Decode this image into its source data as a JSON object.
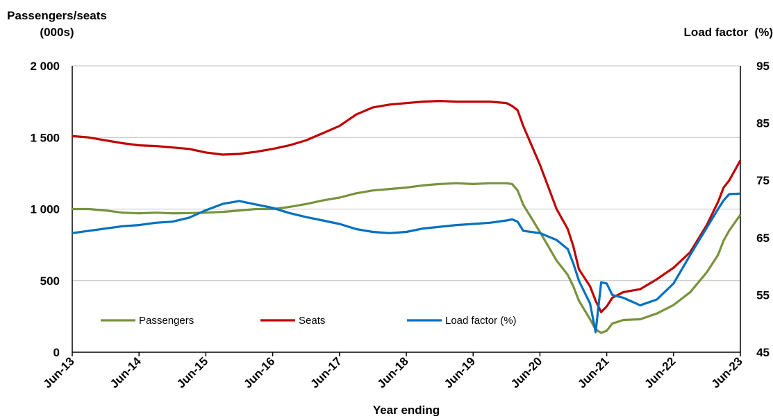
{
  "chart_data": {
    "type": "line",
    "left_axis_title_line1": "Passengers/seats",
    "left_axis_title_line2": "(000s)",
    "right_axis_title": "Load factor  (%)",
    "xlabel": "Year ending",
    "x_ticks": [
      "Jun-13",
      "Jun-14",
      "Jun-15",
      "Jun-16",
      "Jun-17",
      "Jun-18",
      "Jun-19",
      "Jun-20",
      "Jun-21",
      "Jun-22",
      "Jun-23"
    ],
    "y_left": {
      "ticks": [
        "0",
        "500",
        "1 000",
        "1 500",
        "2 000"
      ],
      "tick_values": [
        0,
        500,
        1000,
        1500,
        2000
      ],
      "range": [
        0,
        2000
      ]
    },
    "y_right": {
      "ticks": [
        "45",
        "55",
        "65",
        "75",
        "85",
        "95"
      ],
      "tick_values": [
        45,
        55,
        65,
        75,
        85,
        95
      ],
      "range": [
        45,
        95
      ]
    },
    "grid": "horizontal",
    "legend_position": "bottom-left",
    "series": [
      {
        "name": "Passengers",
        "axis": "left",
        "color": "#77933c",
        "points": [
          [
            "Jun-13",
            1000
          ],
          [
            "Sep-13",
            1000
          ],
          [
            "Dec-13",
            990
          ],
          [
            "Mar-14",
            975
          ],
          [
            "Jun-14",
            970
          ],
          [
            "Sep-14",
            975
          ],
          [
            "Dec-14",
            970
          ],
          [
            "Mar-15",
            972
          ],
          [
            "Jun-15",
            975
          ],
          [
            "Sep-15",
            980
          ],
          [
            "Dec-15",
            990
          ],
          [
            "Mar-16",
            1000
          ],
          [
            "Jun-16",
            1000
          ],
          [
            "Sep-16",
            1015
          ],
          [
            "Dec-16",
            1035
          ],
          [
            "Mar-17",
            1060
          ],
          [
            "Jun-17",
            1080
          ],
          [
            "Sep-17",
            1110
          ],
          [
            "Dec-17",
            1130
          ],
          [
            "Mar-18",
            1140
          ],
          [
            "Jun-18",
            1150
          ],
          [
            "Sep-18",
            1165
          ],
          [
            "Dec-18",
            1175
          ],
          [
            "Mar-19",
            1180
          ],
          [
            "Jun-19",
            1175
          ],
          [
            "Sep-19",
            1180
          ],
          [
            "Dec-19",
            1180
          ],
          [
            "Jan-20",
            1175
          ],
          [
            "Feb-20",
            1130
          ],
          [
            "Mar-20",
            1030
          ],
          [
            "Jun-20",
            840
          ],
          [
            "Sep-20",
            640
          ],
          [
            "Nov-20",
            540
          ],
          [
            "Dec-20",
            460
          ],
          [
            "Jan-21",
            360
          ],
          [
            "Mar-21",
            230
          ],
          [
            "Apr-21",
            160
          ],
          [
            "May-21",
            135
          ],
          [
            "Jun-21",
            150
          ],
          [
            "Jul-21",
            200
          ],
          [
            "Sep-21",
            225
          ],
          [
            "Dec-21",
            230
          ],
          [
            "Mar-22",
            270
          ],
          [
            "Jun-22",
            330
          ],
          [
            "Sep-22",
            420
          ],
          [
            "Dec-22",
            560
          ],
          [
            "Feb-23",
            680
          ],
          [
            "Mar-23",
            780
          ],
          [
            "Apr-23",
            850
          ],
          [
            "Jun-23",
            960
          ]
        ]
      },
      {
        "name": "Seats",
        "axis": "left",
        "color": "#c00000",
        "points": [
          [
            "Jun-13",
            1510
          ],
          [
            "Sep-13",
            1500
          ],
          [
            "Dec-13",
            1480
          ],
          [
            "Mar-14",
            1460
          ],
          [
            "Jun-14",
            1445
          ],
          [
            "Sep-14",
            1440
          ],
          [
            "Dec-14",
            1430
          ],
          [
            "Mar-15",
            1420
          ],
          [
            "Jun-15",
            1395
          ],
          [
            "Sep-15",
            1380
          ],
          [
            "Dec-15",
            1385
          ],
          [
            "Mar-16",
            1400
          ],
          [
            "Jun-16",
            1420
          ],
          [
            "Sep-16",
            1445
          ],
          [
            "Dec-16",
            1480
          ],
          [
            "Mar-17",
            1530
          ],
          [
            "Jun-17",
            1580
          ],
          [
            "Sep-17",
            1660
          ],
          [
            "Dec-17",
            1710
          ],
          [
            "Mar-18",
            1730
          ],
          [
            "Jun-18",
            1740
          ],
          [
            "Sep-18",
            1750
          ],
          [
            "Dec-18",
            1755
          ],
          [
            "Mar-19",
            1750
          ],
          [
            "Jun-19",
            1750
          ],
          [
            "Sep-19",
            1750
          ],
          [
            "Dec-19",
            1740
          ],
          [
            "Jan-20",
            1720
          ],
          [
            "Feb-20",
            1690
          ],
          [
            "Mar-20",
            1580
          ],
          [
            "Jun-20",
            1310
          ],
          [
            "Sep-20",
            1000
          ],
          [
            "Nov-20",
            860
          ],
          [
            "Dec-20",
            740
          ],
          [
            "Jan-21",
            580
          ],
          [
            "Mar-21",
            460
          ],
          [
            "Apr-21",
            360
          ],
          [
            "May-21",
            280
          ],
          [
            "Jun-21",
            320
          ],
          [
            "Jul-21",
            380
          ],
          [
            "Sep-21",
            420
          ],
          [
            "Dec-21",
            440
          ],
          [
            "Mar-22",
            510
          ],
          [
            "Jun-22",
            590
          ],
          [
            "Sep-22",
            700
          ],
          [
            "Dec-22",
            890
          ],
          [
            "Feb-23",
            1050
          ],
          [
            "Mar-23",
            1150
          ],
          [
            "Apr-23",
            1200
          ],
          [
            "Jun-23",
            1340
          ]
        ]
      },
      {
        "name": "Load factor (%)",
        "axis": "right",
        "color": "#0070c0",
        "points": [
          [
            "Jun-13",
            65.8
          ],
          [
            "Sep-13",
            66.2
          ],
          [
            "Dec-13",
            66.6
          ],
          [
            "Mar-14",
            67
          ],
          [
            "Jun-14",
            67.2
          ],
          [
            "Sep-14",
            67.6
          ],
          [
            "Dec-14",
            67.8
          ],
          [
            "Mar-15",
            68.5
          ],
          [
            "Jun-15",
            69.8
          ],
          [
            "Sep-15",
            70.9
          ],
          [
            "Dec-15",
            71.4
          ],
          [
            "Mar-16",
            70.8
          ],
          [
            "Jun-16",
            70.2
          ],
          [
            "Sep-16",
            69.3
          ],
          [
            "Dec-16",
            68.6
          ],
          [
            "Mar-17",
            68
          ],
          [
            "Jun-17",
            67.4
          ],
          [
            "Sep-17",
            66.5
          ],
          [
            "Dec-17",
            66
          ],
          [
            "Mar-18",
            65.8
          ],
          [
            "Jun-18",
            66
          ],
          [
            "Sep-18",
            66.6
          ],
          [
            "Dec-18",
            66.9
          ],
          [
            "Mar-19",
            67.2
          ],
          [
            "Jun-19",
            67.4
          ],
          [
            "Sep-19",
            67.6
          ],
          [
            "Dec-19",
            68
          ],
          [
            "Jan-20",
            68.2
          ],
          [
            "Feb-20",
            67.8
          ],
          [
            "Mar-20",
            66.2
          ],
          [
            "Jun-20",
            65.8
          ],
          [
            "Sep-20",
            64.6
          ],
          [
            "Nov-20",
            63
          ],
          [
            "Dec-20",
            60.5
          ],
          [
            "Jan-21",
            57.5
          ],
          [
            "Mar-21",
            53.5
          ],
          [
            "Apr-21",
            48.5
          ],
          [
            "May-21",
            57.2
          ],
          [
            "Jun-21",
            57
          ],
          [
            "Jul-21",
            55
          ],
          [
            "Sep-21",
            54.5
          ],
          [
            "Dec-21",
            53.2
          ],
          [
            "Mar-22",
            54.2
          ],
          [
            "Jun-22",
            57
          ],
          [
            "Sep-22",
            62
          ],
          [
            "Dec-22",
            66.8
          ],
          [
            "Feb-23",
            70
          ],
          [
            "Mar-23",
            71.5
          ],
          [
            "Apr-23",
            72.6
          ],
          [
            "Jun-23",
            72.7
          ]
        ]
      }
    ]
  }
}
